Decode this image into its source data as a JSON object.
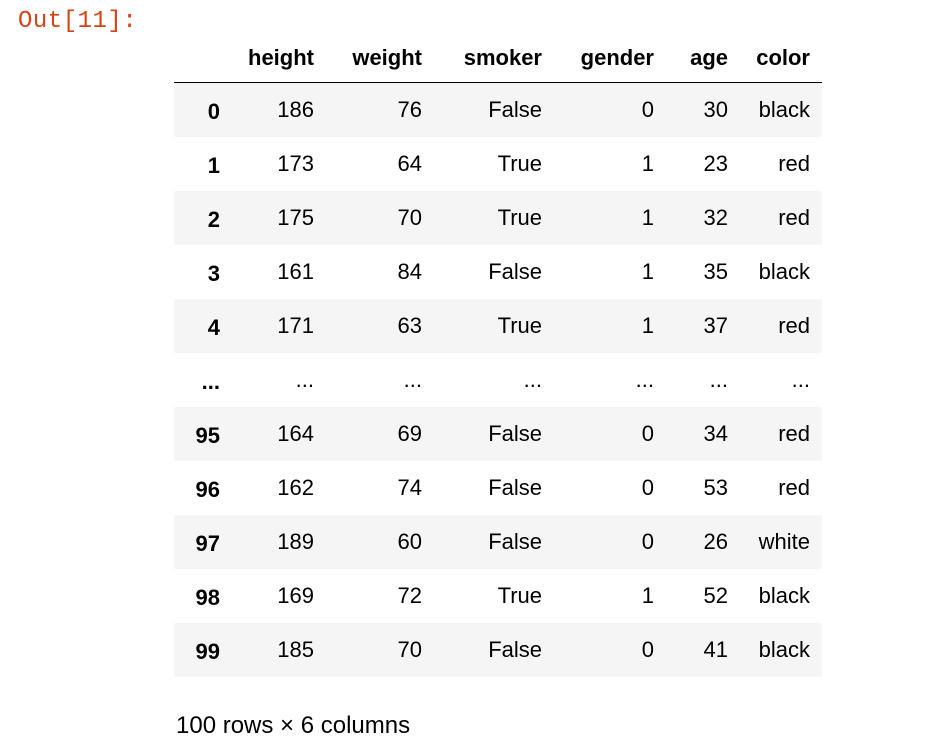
{
  "cell_output": {
    "prompt": "Out[11]:"
  },
  "dataframe": {
    "columns": [
      "height",
      "weight",
      "smoker",
      "gender",
      "age",
      "color"
    ],
    "rows": [
      {
        "index": "0",
        "height": "186",
        "weight": "76",
        "smoker": "False",
        "gender": "0",
        "age": "30",
        "color": "black"
      },
      {
        "index": "1",
        "height": "173",
        "weight": "64",
        "smoker": "True",
        "gender": "1",
        "age": "23",
        "color": "red"
      },
      {
        "index": "2",
        "height": "175",
        "weight": "70",
        "smoker": "True",
        "gender": "1",
        "age": "32",
        "color": "red"
      },
      {
        "index": "3",
        "height": "161",
        "weight": "84",
        "smoker": "False",
        "gender": "1",
        "age": "35",
        "color": "black"
      },
      {
        "index": "4",
        "height": "171",
        "weight": "63",
        "smoker": "True",
        "gender": "1",
        "age": "37",
        "color": "red"
      },
      {
        "index": "...",
        "height": "...",
        "weight": "...",
        "smoker": "...",
        "gender": "...",
        "age": "...",
        "color": "..."
      },
      {
        "index": "95",
        "height": "164",
        "weight": "69",
        "smoker": "False",
        "gender": "0",
        "age": "34",
        "color": "red"
      },
      {
        "index": "96",
        "height": "162",
        "weight": "74",
        "smoker": "False",
        "gender": "0",
        "age": "53",
        "color": "red"
      },
      {
        "index": "97",
        "height": "189",
        "weight": "60",
        "smoker": "False",
        "gender": "0",
        "age": "26",
        "color": "white"
      },
      {
        "index": "98",
        "height": "169",
        "weight": "72",
        "smoker": "True",
        "gender": "1",
        "age": "52",
        "color": "black"
      },
      {
        "index": "99",
        "height": "185",
        "weight": "70",
        "smoker": "False",
        "gender": "0",
        "age": "41",
        "color": "black"
      }
    ],
    "shape_text": "100 rows × 6 columns"
  },
  "colors": {
    "prompt": "#d84315",
    "stripe": "#f5f5f5",
    "text": "#000000"
  }
}
